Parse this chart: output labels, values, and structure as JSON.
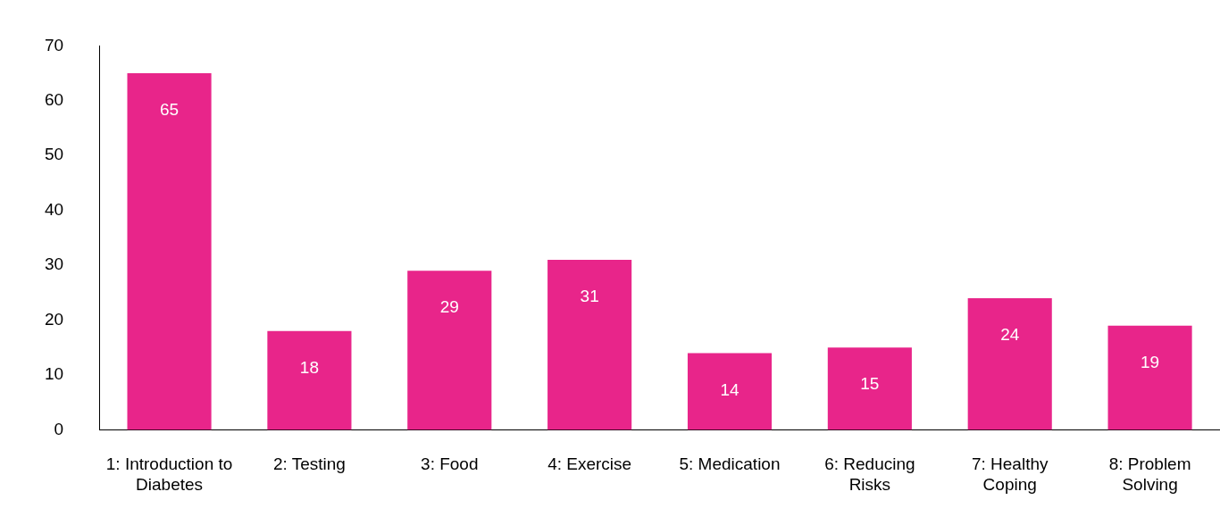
{
  "chart_data": {
    "type": "bar",
    "categories": [
      "1: Introduction to Diabetes",
      "2: Testing",
      "3: Food",
      "4: Exercise",
      "5: Medication",
      "6: Reducing Risks",
      "7: Healthy Coping",
      "8: Problem Solving"
    ],
    "values": [
      65,
      18,
      29,
      31,
      14,
      15,
      24,
      19
    ],
    "color": "#e8258a",
    "ylim": [
      0,
      70
    ],
    "yticks": [
      0,
      10,
      20,
      30,
      40,
      50,
      60,
      70
    ],
    "grid": false,
    "legend": false,
    "data_labels": true
  }
}
